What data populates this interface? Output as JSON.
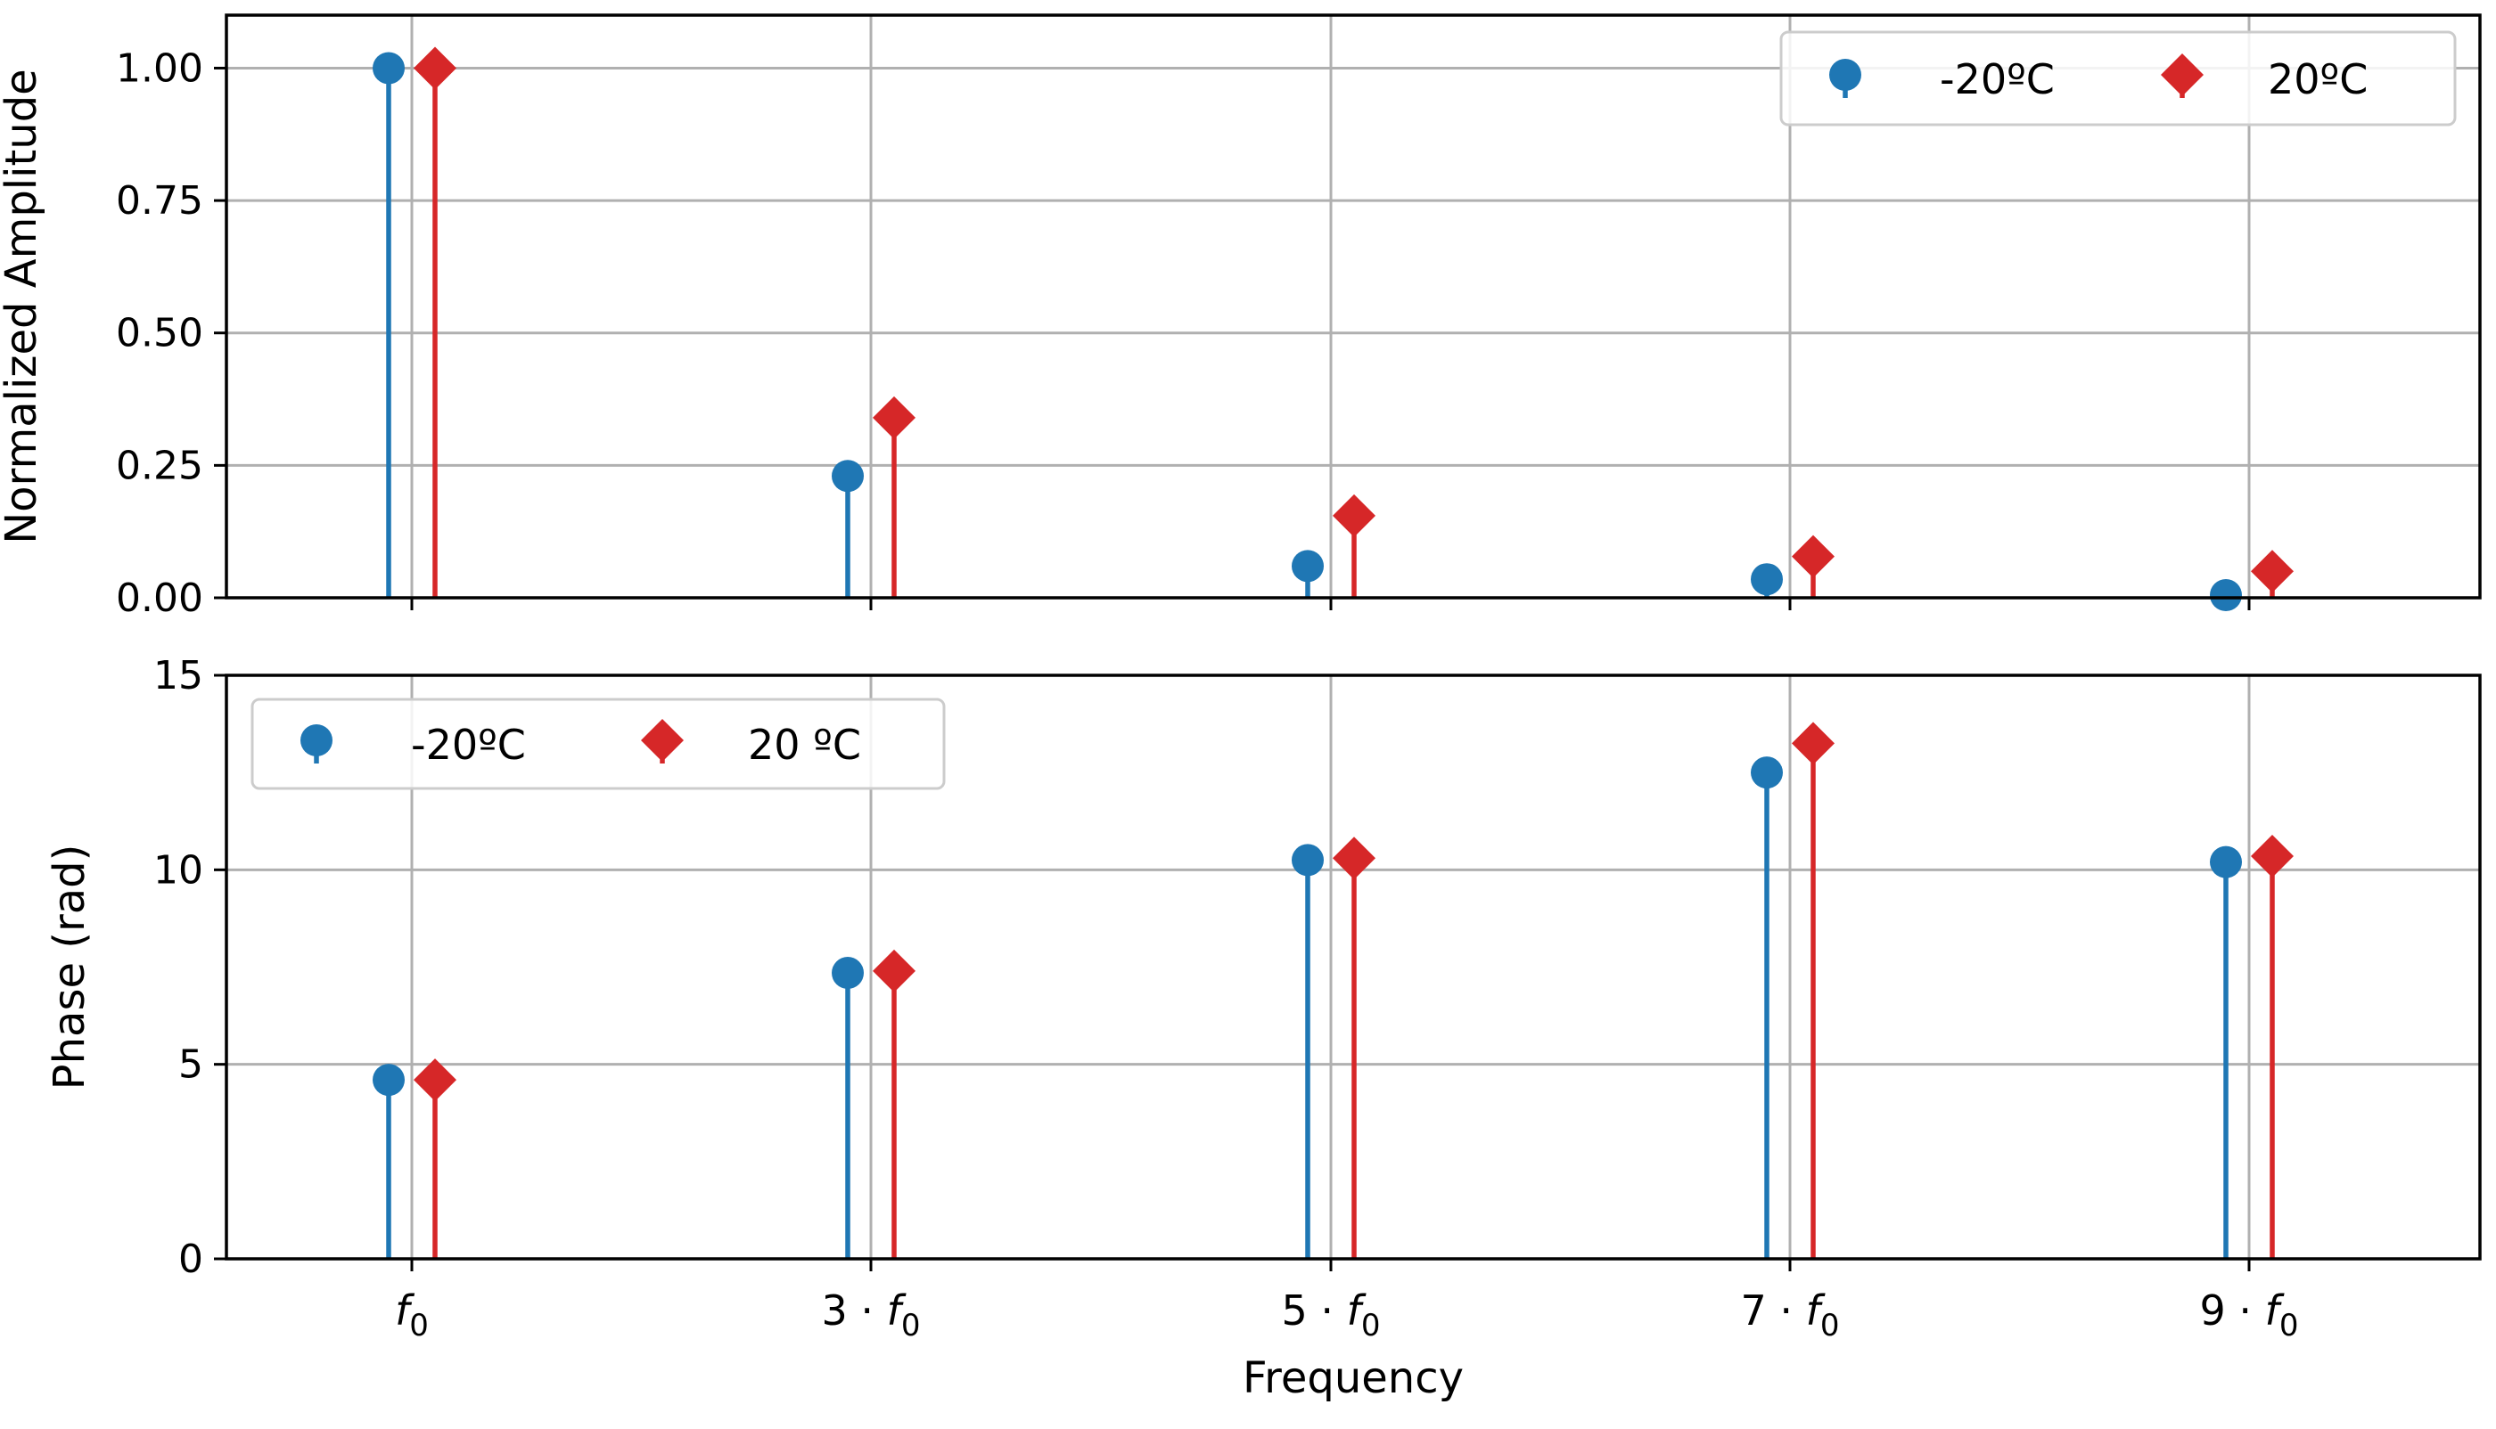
{
  "colors": {
    "series1": "#1f77b4",
    "series2": "#d62728",
    "grid": "#b0b0b0",
    "axis": "#000000",
    "legend_border": "#cccccc"
  },
  "chart_data": [
    {
      "type": "stem",
      "panel": "top",
      "ylabel": "Normalized Amplitude",
      "ylim": [
        0,
        1.1
      ],
      "yticks": [
        "0.00",
        "0.25",
        "0.50",
        "0.75",
        "1.00"
      ],
      "ytick_values": [
        0,
        0.25,
        0.5,
        0.75,
        1.0
      ],
      "categories": [
        "f0",
        "3·f0",
        "5·f0",
        "7·f0",
        "9·f0"
      ],
      "series": [
        {
          "name": "-20ºC",
          "marker": "circle",
          "color": "#1f77b4",
          "values": [
            1.0,
            0.23,
            0.06,
            0.035,
            0.005
          ]
        },
        {
          "name": "20ºC",
          "marker": "diamond",
          "color": "#d62728",
          "values": [
            1.0,
            0.34,
            0.155,
            0.078,
            0.05
          ]
        }
      ],
      "legend": {
        "location": "top-right",
        "labels": [
          "-20ºC",
          "20ºC"
        ]
      }
    },
    {
      "type": "stem",
      "panel": "bottom",
      "ylabel": "Phase (rad)",
      "xlabel": "Frequency",
      "ylim": [
        0,
        15
      ],
      "yticks": [
        "0",
        "5",
        "10",
        "15"
      ],
      "ytick_values": [
        0,
        5,
        10,
        15
      ],
      "categories": [
        "f0",
        "3·f0",
        "5·f0",
        "7·f0",
        "9·f0"
      ],
      "xtick_labels": [
        {
          "coef": "",
          "sym": "f",
          "sub": "0"
        },
        {
          "coef": "3 · ",
          "sym": "f",
          "sub": "0"
        },
        {
          "coef": "5 · ",
          "sym": "f",
          "sub": "0"
        },
        {
          "coef": "7 · ",
          "sym": "f",
          "sub": "0"
        },
        {
          "coef": "9 · ",
          "sym": "f",
          "sub": "0"
        }
      ],
      "series": [
        {
          "name": "-20ºC",
          "marker": "circle",
          "color": "#1f77b4",
          "values": [
            4.6,
            7.35,
            10.25,
            12.5,
            10.2
          ]
        },
        {
          "name": "20 ºC",
          "marker": "diamond",
          "color": "#d62728",
          "values": [
            4.6,
            7.4,
            10.3,
            13.25,
            10.35
          ]
        }
      ],
      "legend": {
        "location": "top-left",
        "labels": [
          "-20ºC",
          "20 ºC"
        ]
      }
    }
  ]
}
